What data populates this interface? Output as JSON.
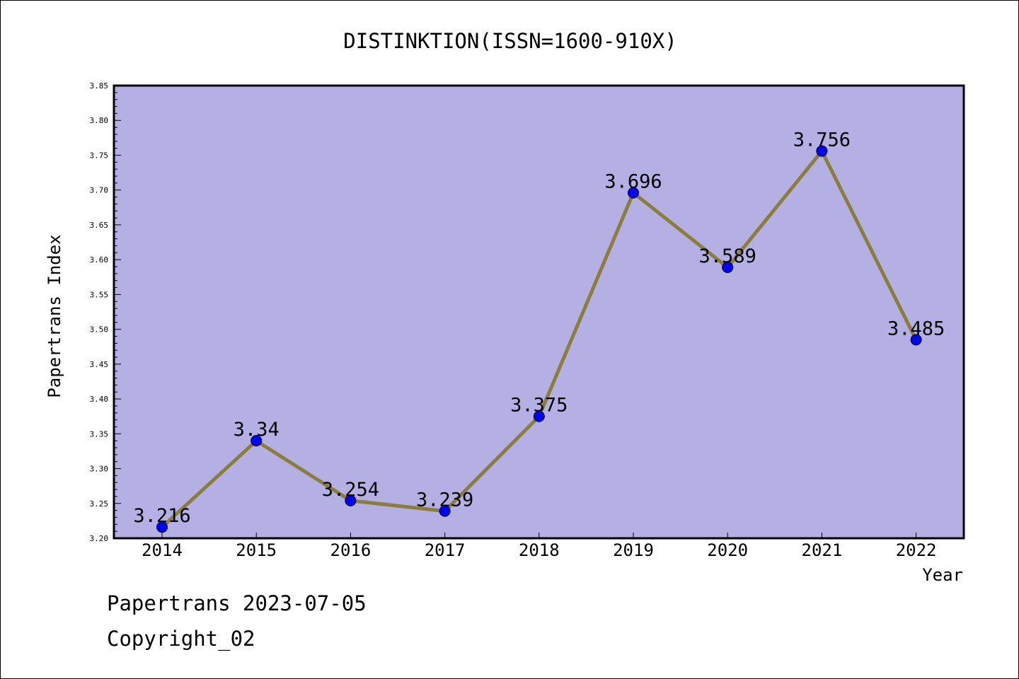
{
  "chart_data": {
    "type": "line",
    "title": "DISTINKTION(ISSN=1600-910X)",
    "xlabel": "Year",
    "ylabel": "Papertrans Index",
    "categories": [
      "2014",
      "2015",
      "2016",
      "2017",
      "2018",
      "2019",
      "2020",
      "2021",
      "2022"
    ],
    "series": [
      {
        "values": [
          3.216,
          3.34,
          3.254,
          3.239,
          3.375,
          3.696,
          3.589,
          3.756,
          3.485
        ],
        "labels": [
          "3.216",
          "3.34",
          "3.254",
          "3.239",
          "3.375",
          "3.696",
          "3.589",
          "3.756",
          "3.485"
        ]
      }
    ],
    "ylim": [
      3.2,
      3.85
    ],
    "yticks": [
      "3.20",
      "3.25",
      "3.30",
      "3.35",
      "3.40",
      "3.45",
      "3.50",
      "3.55",
      "3.60",
      "3.65",
      "3.70",
      "3.75",
      "3.80",
      "3.85"
    ],
    "grid": false,
    "colors": {
      "plot_background": "#b5b0e3",
      "line": "#8b7d3a",
      "marker": "#0000ff"
    }
  },
  "footer": {
    "line1": "Papertrans 2023-07-05",
    "line2": "Copyright_02"
  }
}
